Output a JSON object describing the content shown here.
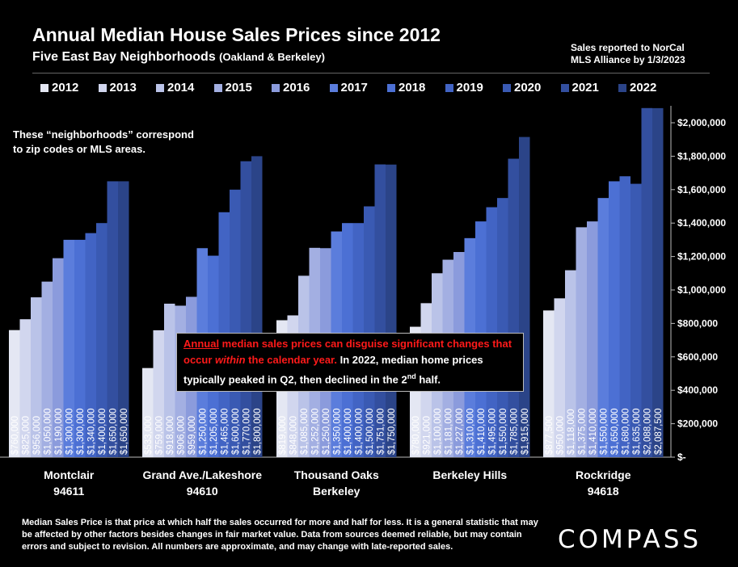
{
  "header": {
    "title": "Annual Median House Sales Prices since 2012",
    "subtitle": "Five East Bay Neighborhoods",
    "subtitle_small": "(Oakland & Berkeley)",
    "source_line1": "Sales reported to NorCal",
    "source_line2": "MLS Alliance by 1/3/2023"
  },
  "note": {
    "line1": "These “neighborhoods” correspond",
    "line2": "to zip codes or MLS areas."
  },
  "callout": {
    "part1": "Annual",
    "part2": " median sales prices can disguise significant changes that occur ",
    "part3": "within",
    "part4": " the calendar year.",
    "part5": " In 2022, median home prices typically peaked in Q2, then declined in the 2",
    "sup": "nd",
    "part6": " half."
  },
  "footer": "Median Sales Price is that price at which half the sales occurred for more and half for less. It is a general statistic that may be affected by other factors besides changes in fair market value. Data from sources deemed reliable, but may contain errors and subject to revision.  All numbers are approximate, and may change with late-reported sales.",
  "logo": "COMPASS",
  "chart_data": {
    "type": "bar",
    "categories": [
      [
        "Montclair",
        "94611"
      ],
      [
        "Grand Ave./Lakeshore",
        "94610"
      ],
      [
        "Thousand Oaks",
        "Berkeley"
      ],
      [
        "Berkeley Hills",
        ""
      ],
      [
        "Rockridge",
        "94618"
      ]
    ],
    "series": [
      {
        "name": "2012",
        "color": "#e4e7f3",
        "values": [
          760000,
          533000,
          819000,
          780000,
          877500
        ]
      },
      {
        "name": "2013",
        "color": "#d1d6ee",
        "values": [
          825000,
          759000,
          848000,
          921000,
          950000
        ]
      },
      {
        "name": "2014",
        "color": "#bac3e8",
        "values": [
          956000,
          918000,
          1085000,
          1100000,
          1118000
        ]
      },
      {
        "name": "2015",
        "color": "#a3afe2",
        "values": [
          1050000,
          906000,
          1252000,
          1181000,
          1375000
        ]
      },
      {
        "name": "2016",
        "color": "#8b9bdc",
        "values": [
          1190000,
          959000,
          1250000,
          1227000,
          1410000
        ]
      },
      {
        "name": "2017",
        "color": "#5b7ddc",
        "values": [
          1300000,
          1250000,
          1350000,
          1310000,
          1550000
        ]
      },
      {
        "name": "2018",
        "color": "#4c70d4",
        "values": [
          1300000,
          1205000,
          1400000,
          1410000,
          1650000
        ]
      },
      {
        "name": "2019",
        "color": "#4264c4",
        "values": [
          1340000,
          1465000,
          1400000,
          1495000,
          1680000
        ]
      },
      {
        "name": "2020",
        "color": "#3a5ab3",
        "values": [
          1400000,
          1600000,
          1500000,
          1550000,
          1635000
        ]
      },
      {
        "name": "2021",
        "color": "#334f9f",
        "values": [
          1650000,
          1770000,
          1751000,
          1785000,
          2088000
        ]
      },
      {
        "name": "2022",
        "color": "#2b4488",
        "values": [
          1650000,
          1800000,
          1750000,
          1915000,
          2087500
        ]
      }
    ],
    "value_labels": [
      [
        "$760,000",
        "$825,000",
        "$956,000",
        "$1,050,000",
        "$1,190,000",
        "$1,300,000",
        "$1,300,000",
        "$1,340,000",
        "$1,400,000",
        "$1,650,000",
        "$1,650,000"
      ],
      [
        "$533,000",
        "$759,000",
        "$918,000",
        "$906,000",
        "$959,000",
        "$1,250,000",
        "$1,205,000",
        "$1,465,000",
        "$1,600,000",
        "$1,770,000",
        "$1,800,000"
      ],
      [
        "$819,000",
        "$848,000",
        "$1,085,000",
        "$1,252,000",
        "$1,250,000",
        "$1,350,000",
        "$1,400,000",
        "$1,400,000",
        "$1,500,000",
        "$1,751,000",
        "$1,750,000"
      ],
      [
        "$780,000",
        "$921,000",
        "$1,100,000",
        "$1,181,000",
        "$1,227,000",
        "$1,310,000",
        "$1,410,000",
        "$1,495,000",
        "$1,550,000",
        "$1,785,000",
        "$1,915,000"
      ],
      [
        "$877,500",
        "$950,000",
        "$1,118,000",
        "$1,375,000",
        "$1,410,000",
        "$1,550,000",
        "$1,650,000",
        "$1,680,000",
        "$1,635,000",
        "$2,088,000",
        "$2,087,500"
      ]
    ],
    "y_ticks": [
      {
        "value": 0,
        "label": "$-"
      },
      {
        "value": 200000,
        "label": "$200,000"
      },
      {
        "value": 400000,
        "label": "$400,000"
      },
      {
        "value": 600000,
        "label": "$600,000"
      },
      {
        "value": 800000,
        "label": "$800,000"
      },
      {
        "value": 1000000,
        "label": "$1,000,000"
      },
      {
        "value": 1200000,
        "label": "$1,200,000"
      },
      {
        "value": 1400000,
        "label": "$1,400,000"
      },
      {
        "value": 1600000,
        "label": "$1,600,000"
      },
      {
        "value": 1800000,
        "label": "$1,800,000"
      },
      {
        "value": 2000000,
        "label": "$2,000,000"
      }
    ],
    "ylim": [
      0,
      2100000
    ],
    "legend_position": "top",
    "grid": false
  }
}
